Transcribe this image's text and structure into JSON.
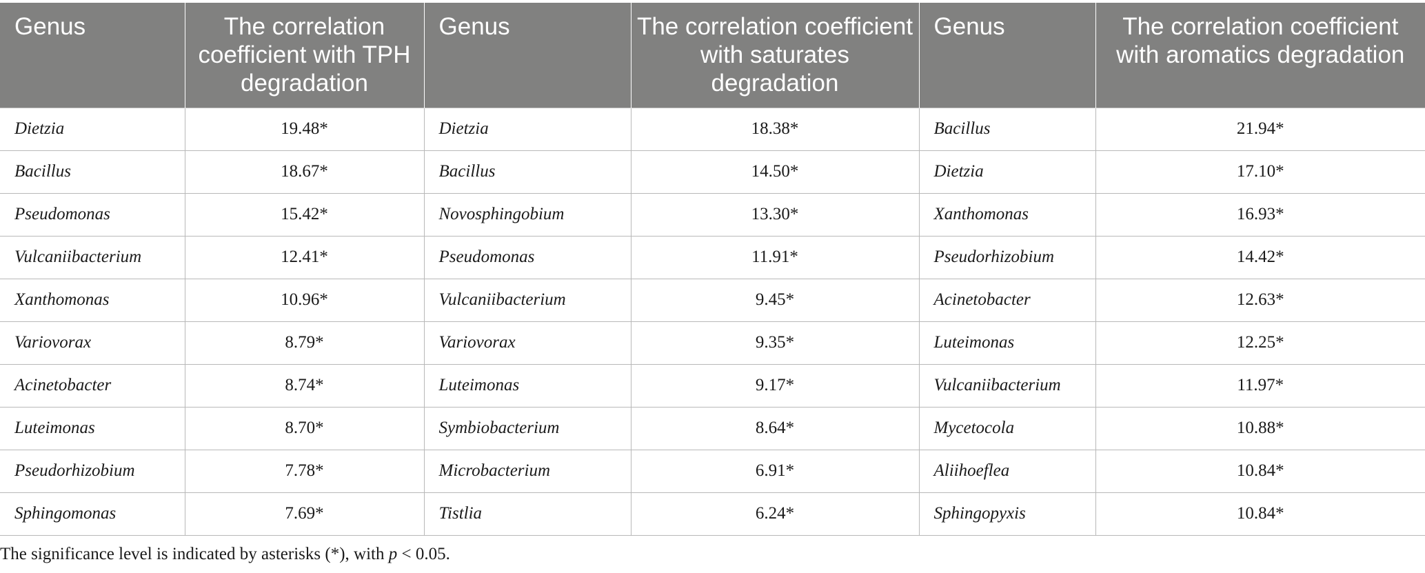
{
  "table": {
    "headers": [
      "Genus",
      "The correlation coefficient with TPH degradation",
      "Genus",
      "The correlation coefficient with saturates degradation",
      "Genus",
      "The correlation coefficient with aromatics degradation"
    ],
    "rows": [
      [
        "Dietzia",
        "19.48*",
        "Dietzia",
        "18.38*",
        "Bacillus",
        "21.94*"
      ],
      [
        "Bacillus",
        "18.67*",
        "Bacillus",
        "14.50*",
        "Dietzia",
        "17.10*"
      ],
      [
        "Pseudomonas",
        "15.42*",
        "Novosphingobium",
        "13.30*",
        "Xanthomonas",
        "16.93*"
      ],
      [
        "Vulcaniibacterium",
        "12.41*",
        "Pseudomonas",
        "11.91*",
        "Pseudorhizobium",
        "14.42*"
      ],
      [
        "Xanthomonas",
        "10.96*",
        "Vulcaniibacterium",
        "9.45*",
        "Acinetobacter",
        "12.63*"
      ],
      [
        "Variovorax",
        "8.79*",
        "Variovorax",
        "9.35*",
        "Luteimonas",
        "12.25*"
      ],
      [
        "Acinetobacter",
        "8.74*",
        "Luteimonas",
        "9.17*",
        "Vulcaniibacterium",
        "11.97*"
      ],
      [
        "Luteimonas",
        "8.70*",
        "Symbiobacterium",
        "8.64*",
        "Mycetocola",
        "10.88*"
      ],
      [
        "Pseudorhizobium",
        "7.78*",
        "Microbacterium",
        "6.91*",
        "Aliihoeflea",
        "10.84*"
      ],
      [
        "Sphingomonas",
        "7.69*",
        "Tistlia",
        "6.24*",
        "Sphingopyxis",
        "10.84*"
      ]
    ]
  },
  "footnote": {
    "prefix": "The significance level is indicated by asterisks (*), with ",
    "pvar": "p",
    "suffix": " < 0.05."
  },
  "colors": {
    "header_bg": "#818180",
    "header_text": "#ffffff",
    "grid": "#b8b8b8"
  }
}
